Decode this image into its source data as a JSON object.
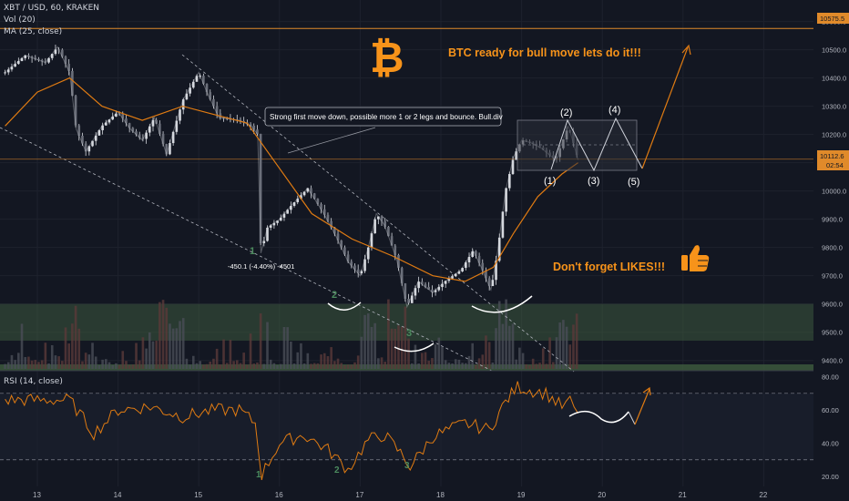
{
  "header": {
    "symbol": "XBT / USD, 60, KRAKEN",
    "vol_label": "Vol (20)",
    "ma_label": "MA (25, close)",
    "rsi_label": "RSI (14, close)"
  },
  "colors": {
    "background": "#131722",
    "candle": "#d5d8de",
    "ma": "#e07b12",
    "orange_text": "#f7931a",
    "rsi": "#e07b12",
    "zone": "#3f5d3f",
    "resistance": "#e08a2a"
  },
  "annotations": {
    "headline": "BTC ready for bull move lets do it!!!",
    "likes": "Don't forget LIKES!!!",
    "note": "Strong first move down, possible more 1 or 2 legs and bounce. Bull.div",
    "measure": "-450.1 (-4.40%) -4501",
    "wave_labels": [
      "(1)",
      "(2)",
      "(3)",
      "(4)",
      "(5)"
    ],
    "count_labels": [
      "1",
      "2",
      "3"
    ],
    "rsi_count_labels": [
      "1",
      "2",
      "3"
    ]
  },
  "price_badges": {
    "top": "10575.5",
    "current": "10112.6",
    "countdown": "02:54"
  },
  "chart_data": {
    "type": "candlestick",
    "title": "XBT / USD, 60, KRAKEN",
    "x_ticks": [
      "13",
      "14",
      "15",
      "16",
      "17",
      "18",
      "19",
      "20",
      "21",
      "22"
    ],
    "price_axis": {
      "ticks": [
        9400,
        9500,
        9600,
        9700,
        9800,
        9900,
        10000,
        10100,
        10200,
        10300,
        10400,
        10500,
        10600
      ],
      "labels": [
        "9400.0",
        "9500.0",
        "9600.0",
        "9700.0",
        "9800.0",
        "9900.0",
        "10000.0",
        "10100.0",
        "10200.0",
        "10300.0",
        "10400.0",
        "10500.0",
        "10600.0"
      ],
      "range": [
        9370,
        10660
      ]
    },
    "rsi_axis": {
      "ticks": [
        20,
        40,
        60,
        80
      ],
      "labels": [
        "20.00",
        "40.00",
        "60.00",
        "80.00"
      ],
      "range": [
        15,
        82
      ],
      "levels": [
        30,
        70
      ]
    },
    "resistance_level": 10575.5,
    "current_price": 10112.6,
    "support_zone": [
      9470,
      9600
    ],
    "price_path": [
      [
        12.6,
        10420
      ],
      [
        12.85,
        10480
      ],
      [
        13.1,
        10455
      ],
      [
        13.25,
        10510
      ],
      [
        13.4,
        10420
      ],
      [
        13.48,
        10220
      ],
      [
        13.6,
        10140
      ],
      [
        13.8,
        10230
      ],
      [
        14.0,
        10280
      ],
      [
        14.15,
        10220
      ],
      [
        14.3,
        10180
      ],
      [
        14.45,
        10260
      ],
      [
        14.6,
        10130
      ],
      [
        14.8,
        10320
      ],
      [
        15.0,
        10420
      ],
      [
        15.1,
        10350
      ],
      [
        15.25,
        10260
      ],
      [
        15.5,
        10250
      ],
      [
        15.65,
        10230
      ],
      [
        15.73,
        10200
      ],
      [
        15.77,
        9780
      ],
      [
        15.85,
        9870
      ],
      [
        16.0,
        9900
      ],
      [
        16.15,
        9950
      ],
      [
        16.35,
        10010
      ],
      [
        16.55,
        9920
      ],
      [
        16.7,
        9840
      ],
      [
        16.85,
        9750
      ],
      [
        17.0,
        9700
      ],
      [
        17.1,
        9800
      ],
      [
        17.2,
        9920
      ],
      [
        17.3,
        9880
      ],
      [
        17.45,
        9760
      ],
      [
        17.58,
        9590
      ],
      [
        17.72,
        9680
      ],
      [
        17.9,
        9640
      ],
      [
        18.05,
        9680
      ],
      [
        18.25,
        9720
      ],
      [
        18.4,
        9790
      ],
      [
        18.5,
        9730
      ],
      [
        18.62,
        9650
      ],
      [
        18.7,
        9780
      ],
      [
        18.8,
        10000
      ],
      [
        18.9,
        10120
      ],
      [
        19.0,
        10180
      ],
      [
        19.12,
        10170
      ],
      [
        19.25,
        10150
      ],
      [
        19.42,
        10110
      ],
      [
        19.58,
        10230
      ],
      [
        19.7,
        10110
      ]
    ],
    "ma_path": [
      [
        12.6,
        10230
      ],
      [
        13.0,
        10350
      ],
      [
        13.4,
        10400
      ],
      [
        13.8,
        10300
      ],
      [
        14.3,
        10250
      ],
      [
        14.8,
        10300
      ],
      [
        15.2,
        10270
      ],
      [
        15.6,
        10240
      ],
      [
        16.0,
        10080
      ],
      [
        16.4,
        9920
      ],
      [
        16.9,
        9830
      ],
      [
        17.4,
        9770
      ],
      [
        17.9,
        9700
      ],
      [
        18.3,
        9680
      ],
      [
        18.65,
        9730
      ],
      [
        18.9,
        9850
      ],
      [
        19.2,
        9980
      ],
      [
        19.5,
        10060
      ],
      [
        19.7,
        10100
      ]
    ],
    "rsi_path": [
      [
        12.6,
        66
      ],
      [
        13.0,
        66
      ],
      [
        13.4,
        66
      ],
      [
        13.7,
        46
      ],
      [
        14.0,
        60
      ],
      [
        14.4,
        62
      ],
      [
        14.8,
        56
      ],
      [
        15.2,
        60
      ],
      [
        15.5,
        60
      ],
      [
        15.7,
        52
      ],
      [
        15.78,
        21
      ],
      [
        16.0,
        40
      ],
      [
        16.3,
        45
      ],
      [
        16.6,
        36
      ],
      [
        16.85,
        24
      ],
      [
        17.1,
        42
      ],
      [
        17.3,
        45
      ],
      [
        17.5,
        34
      ],
      [
        17.62,
        26
      ],
      [
        17.9,
        44
      ],
      [
        18.3,
        52
      ],
      [
        18.6,
        48
      ],
      [
        18.8,
        65
      ],
      [
        18.95,
        74
      ],
      [
        19.1,
        72
      ],
      [
        19.3,
        70
      ],
      [
        19.5,
        62
      ],
      [
        19.6,
        65
      ],
      [
        19.7,
        58
      ]
    ]
  }
}
